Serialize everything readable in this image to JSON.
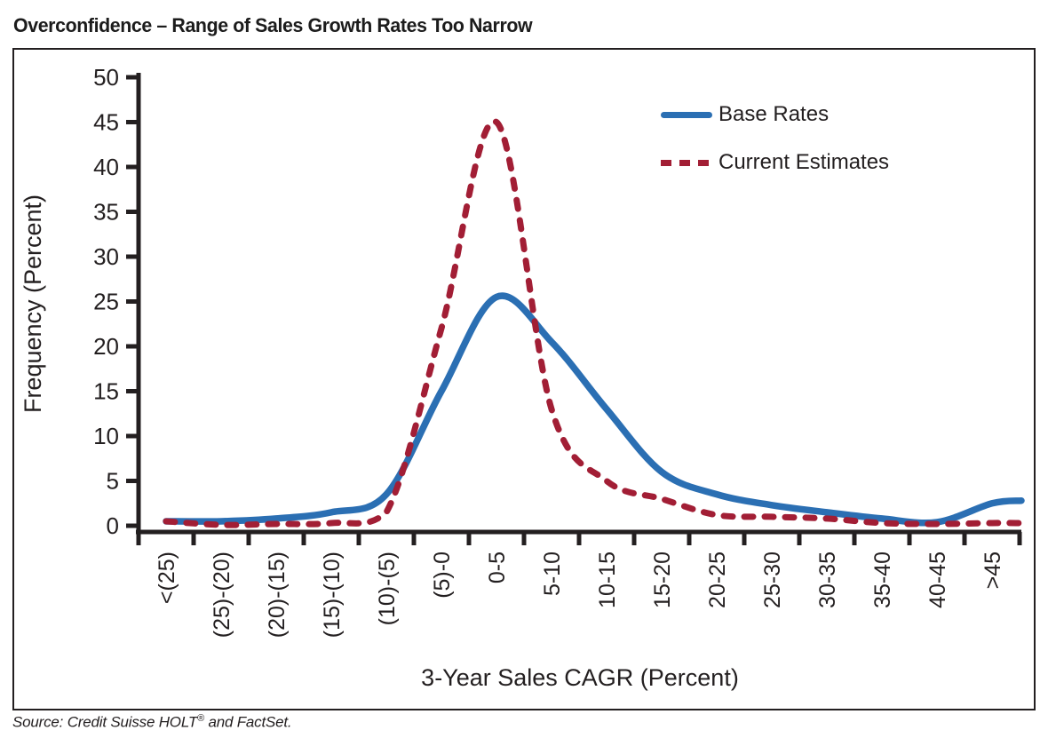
{
  "page": {
    "title": "Overconfidence – Range of Sales Growth Rates Too Narrow",
    "source_main": "Source: Credit Suisse HOLT",
    "source_reg": "®",
    "source_tail": " and FactSet."
  },
  "legend": {
    "items": [
      {
        "label": "Base Rates",
        "style": "solid",
        "color": "#2b6fb3"
      },
      {
        "label": "Current Estimates",
        "style": "dashed",
        "color": "#a21e35"
      }
    ]
  },
  "chart_data": {
    "type": "line",
    "title": "Overconfidence – Range of Sales Growth Rates Too Narrow",
    "xlabel": "3-Year Sales CAGR (Percent)",
    "ylabel": "Frequency (Percent)",
    "ylim": [
      0,
      50
    ],
    "ytick_step": 5,
    "yticks": [
      0,
      5,
      10,
      15,
      20,
      25,
      30,
      35,
      40,
      45,
      50
    ],
    "grid": false,
    "legend_position": "top-right-inside",
    "categories": [
      "<(25)",
      "(25)-(20)",
      "(20)-(15)",
      "(15)-(10)",
      "(10)-(5)",
      "(5)-0",
      "0-5",
      "5-10",
      "10-15",
      "15-20",
      "20-25",
      "25-30",
      "30-35",
      "35-40",
      "40-45",
      ">45"
    ],
    "series": [
      {
        "name": "Base Rates",
        "color": "#2b6fb3",
        "style": "solid",
        "values": [
          0.5,
          0.5,
          0.8,
          1.5,
          3.5,
          15,
          25.5,
          20.5,
          13,
          6,
          3.5,
          2.3,
          1.5,
          0.8,
          0.4,
          2.5
        ],
        "right_edge_value": 2.8
      },
      {
        "name": "Current Estimates",
        "color": "#a21e35",
        "style": "dashed",
        "values": [
          0.5,
          0.1,
          0.2,
          0.3,
          1.5,
          22,
          45,
          13,
          5,
          3,
          1.2,
          1.0,
          0.8,
          0.3,
          0.2,
          0.3
        ],
        "right_edge_value": 0.3
      }
    ]
  }
}
